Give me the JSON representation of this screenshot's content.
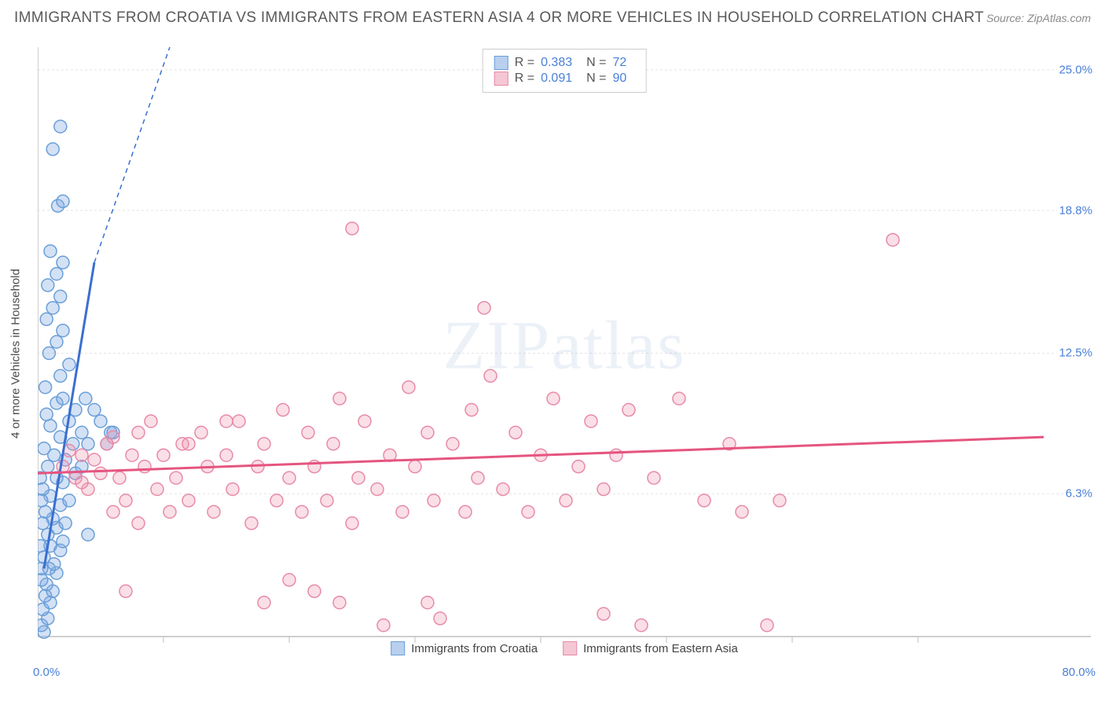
{
  "header": {
    "title": "IMMIGRANTS FROM CROATIA VS IMMIGRANTS FROM EASTERN ASIA 4 OR MORE VEHICLES IN HOUSEHOLD CORRELATION CHART",
    "source": "Source: ZipAtlas.com"
  },
  "chart": {
    "type": "scatter",
    "watermark": "ZIPatlas",
    "ylabel": "4 or more Vehicles in Household",
    "xlim": [
      0,
      80
    ],
    "ylim": [
      0,
      26
    ],
    "xtick_major": [
      0,
      10,
      20,
      30,
      40,
      50,
      60,
      70
    ],
    "ytick_positions": [
      6.3,
      12.5,
      18.8,
      25.0
    ],
    "ytick_labels": [
      "6.3%",
      "12.5%",
      "18.8%",
      "25.0%"
    ],
    "x_corner_label": "0.0%",
    "x_max_label": "80.0%",
    "background_color": "#ffffff",
    "grid_color": "#e4e4e4",
    "axis_color": "#bfbfbf",
    "marker_radius": 8,
    "marker_stroke_width": 1.5,
    "trend_solid_width": 3,
    "trend_dash_width": 1.5,
    "series": [
      {
        "key": "croatia",
        "label": "Immigrants from Croatia",
        "fill": "rgba(130,170,225,0.35)",
        "stroke": "#6a9fd8",
        "swatch_fill": "#b8d0ee",
        "swatch_stroke": "#6a9fd8",
        "r_value": "0.383",
        "n_value": "72",
        "trend": {
          "x1": 0.5,
          "y1": 3.0,
          "x2_solid": 4.5,
          "y2_solid": 16.5,
          "x2_dash": 10.5,
          "y2_dash": 26.0,
          "color": "#3a6fd0"
        },
        "points": [
          [
            0.5,
            0.2
          ],
          [
            0.3,
            0.5
          ],
          [
            0.8,
            0.8
          ],
          [
            0.4,
            1.2
          ],
          [
            1.0,
            1.5
          ],
          [
            0.6,
            1.8
          ],
          [
            1.2,
            2.0
          ],
          [
            0.7,
            2.3
          ],
          [
            1.5,
            2.8
          ],
          [
            0.9,
            3.0
          ],
          [
            1.3,
            3.2
          ],
          [
            0.5,
            3.5
          ],
          [
            1.8,
            3.8
          ],
          [
            1.0,
            4.0
          ],
          [
            2.0,
            4.2
          ],
          [
            0.8,
            4.5
          ],
          [
            1.5,
            4.8
          ],
          [
            2.2,
            5.0
          ],
          [
            1.2,
            5.2
          ],
          [
            0.6,
            5.5
          ],
          [
            1.8,
            5.8
          ],
          [
            2.5,
            6.0
          ],
          [
            1.0,
            6.2
          ],
          [
            0.4,
            6.5
          ],
          [
            2.0,
            6.8
          ],
          [
            1.5,
            7.0
          ],
          [
            3.0,
            7.2
          ],
          [
            0.8,
            7.5
          ],
          [
            2.2,
            7.8
          ],
          [
            1.3,
            8.0
          ],
          [
            0.5,
            8.3
          ],
          [
            2.8,
            8.5
          ],
          [
            1.8,
            8.8
          ],
          [
            3.5,
            9.0
          ],
          [
            1.0,
            9.3
          ],
          [
            2.5,
            9.5
          ],
          [
            0.7,
            9.8
          ],
          [
            3.0,
            10.0
          ],
          [
            1.5,
            10.3
          ],
          [
            2.0,
            10.5
          ],
          [
            3.8,
            10.5
          ],
          [
            4.5,
            10.0
          ],
          [
            5.0,
            9.5
          ],
          [
            5.8,
            9.0
          ],
          [
            0.6,
            11.0
          ],
          [
            1.8,
            11.5
          ],
          [
            2.5,
            12.0
          ],
          [
            0.9,
            12.5
          ],
          [
            1.5,
            13.0
          ],
          [
            2.0,
            13.5
          ],
          [
            0.7,
            14.0
          ],
          [
            1.2,
            14.5
          ],
          [
            1.8,
            15.0
          ],
          [
            0.8,
            15.5
          ],
          [
            1.5,
            16.0
          ],
          [
            2.0,
            16.5
          ],
          [
            1.0,
            17.0
          ],
          [
            1.6,
            19.0
          ],
          [
            2.0,
            19.2
          ],
          [
            1.2,
            21.5
          ],
          [
            1.8,
            22.5
          ],
          [
            0.3,
            3.0
          ],
          [
            0.2,
            4.0
          ],
          [
            0.4,
            5.0
          ],
          [
            0.3,
            6.0
          ],
          [
            0.2,
            7.0
          ],
          [
            0.3,
            2.5
          ],
          [
            4.0,
            8.5
          ],
          [
            3.5,
            7.5
          ],
          [
            5.5,
            8.5
          ],
          [
            6.0,
            9.0
          ],
          [
            4.0,
            4.5
          ]
        ]
      },
      {
        "key": "eastern_asia",
        "label": "Immigrants from Eastern Asia",
        "fill": "rgba(240,150,175,0.30)",
        "stroke": "#e88aa8",
        "swatch_fill": "#f5c6d4",
        "swatch_stroke": "#e88aa8",
        "r_value": "0.091",
        "n_value": "90",
        "trend": {
          "x1": 0,
          "y1": 7.2,
          "x2_solid": 80,
          "y2_solid": 8.8,
          "color": "#e5557f"
        },
        "points": [
          [
            2,
            7.5
          ],
          [
            3,
            7.0
          ],
          [
            3.5,
            8.0
          ],
          [
            4,
            6.5
          ],
          [
            4.5,
            7.8
          ],
          [
            5,
            7.2
          ],
          [
            5.5,
            8.5
          ],
          [
            6,
            5.5
          ],
          [
            6.5,
            7.0
          ],
          [
            7,
            6.0
          ],
          [
            7.5,
            8.0
          ],
          [
            8,
            5.0
          ],
          [
            8.5,
            7.5
          ],
          [
            9,
            9.5
          ],
          [
            9.5,
            6.5
          ],
          [
            10,
            8.0
          ],
          [
            10.5,
            5.5
          ],
          [
            11,
            7.0
          ],
          [
            11.5,
            8.5
          ],
          [
            12,
            6.0
          ],
          [
            13,
            9.0
          ],
          [
            13.5,
            7.5
          ],
          [
            14,
            5.5
          ],
          [
            15,
            8.0
          ],
          [
            15.5,
            6.5
          ],
          [
            16,
            9.5
          ],
          [
            17,
            5.0
          ],
          [
            17.5,
            7.5
          ],
          [
            18,
            8.5
          ],
          [
            19,
            6.0
          ],
          [
            19.5,
            10.0
          ],
          [
            20,
            7.0
          ],
          [
            21,
            5.5
          ],
          [
            21.5,
            9.0
          ],
          [
            22,
            7.5
          ],
          [
            23,
            6.0
          ],
          [
            23.5,
            8.5
          ],
          [
            24,
            10.5
          ],
          [
            25,
            5.0
          ],
          [
            25.5,
            7.0
          ],
          [
            26,
            9.5
          ],
          [
            27,
            6.5
          ],
          [
            27.5,
            0.5
          ],
          [
            28,
            8.0
          ],
          [
            29,
            5.5
          ],
          [
            29.5,
            11.0
          ],
          [
            30,
            7.5
          ],
          [
            31,
            9.0
          ],
          [
            31.5,
            6.0
          ],
          [
            32,
            0.8
          ],
          [
            33,
            8.5
          ],
          [
            34,
            5.5
          ],
          [
            34.5,
            10.0
          ],
          [
            35,
            7.0
          ],
          [
            35.5,
            14.5
          ],
          [
            36,
            11.5
          ],
          [
            37,
            6.5
          ],
          [
            38,
            9.0
          ],
          [
            39,
            5.5
          ],
          [
            40,
            8.0
          ],
          [
            41,
            10.5
          ],
          [
            42,
            6.0
          ],
          [
            43,
            7.5
          ],
          [
            44,
            9.5
          ],
          [
            45,
            6.5
          ],
          [
            46,
            8.0
          ],
          [
            47,
            10.0
          ],
          [
            48,
            0.5
          ],
          [
            49,
            7.0
          ],
          [
            51,
            10.5
          ],
          [
            53,
            6.0
          ],
          [
            55,
            8.5
          ],
          [
            56,
            5.5
          ],
          [
            58,
            0.5
          ],
          [
            59,
            6.0
          ],
          [
            45,
            1.0
          ],
          [
            25,
            18.0
          ],
          [
            7,
            2.0
          ],
          [
            22,
            2.0
          ],
          [
            20,
            2.5
          ],
          [
            24,
            1.5
          ],
          [
            18,
            1.5
          ],
          [
            68,
            17.5
          ],
          [
            2.5,
            8.2
          ],
          [
            3.5,
            6.8
          ],
          [
            6,
            8.8
          ],
          [
            8,
            9.0
          ],
          [
            12,
            8.5
          ],
          [
            15,
            9.5
          ],
          [
            31,
            1.5
          ]
        ]
      }
    ],
    "stat_legend": {
      "r_label": "R =",
      "n_label": "N ="
    }
  }
}
